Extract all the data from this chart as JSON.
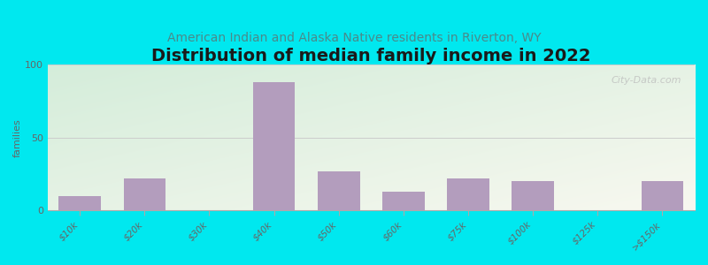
{
  "title": "Distribution of median family income in 2022",
  "subtitle": "American Indian and Alaska Native residents in Riverton, WY",
  "categories": [
    "$10k",
    "$20k",
    "$30k",
    "$40k",
    "$50k",
    "$60k",
    "$75k",
    "$100k",
    "$125k",
    ">$150k"
  ],
  "values": [
    10,
    22,
    0,
    88,
    27,
    13,
    22,
    20,
    0,
    20
  ],
  "bar_color": "#b39dbd",
  "ylabel": "families",
  "ylim": [
    0,
    100
  ],
  "yticks": [
    0,
    50,
    100
  ],
  "fig_bg": "#00e8ef",
  "plot_bg_top_left": "#d4edda",
  "plot_bg_bottom_right": "#f5f5ee",
  "title_fontsize": 14,
  "subtitle_fontsize": 10,
  "subtitle_color": "#4a8a8a",
  "grid_color": "#cccccc",
  "tick_label_color": "#666666",
  "watermark_text": "City-Data.com",
  "bar_width": 0.65
}
